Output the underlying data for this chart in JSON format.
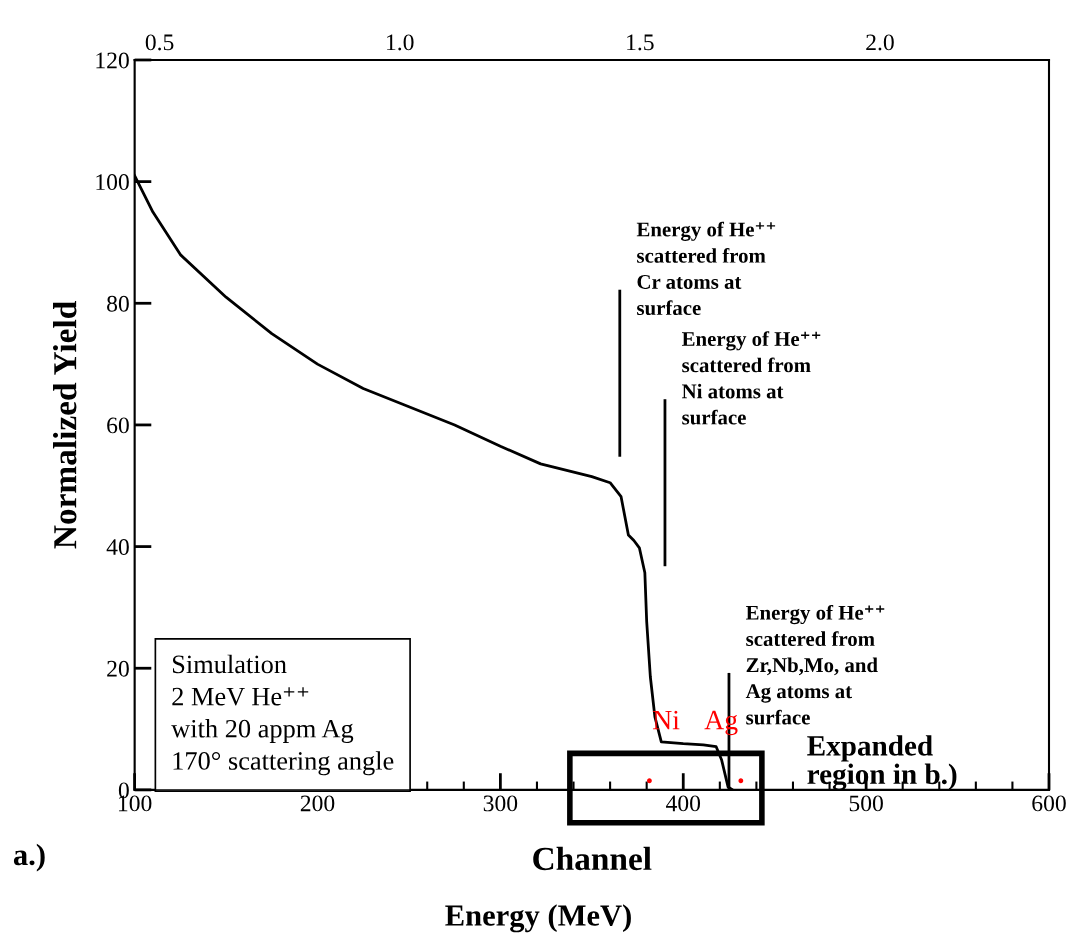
{
  "chart_data": {
    "type": "line",
    "xlabel": "Channel",
    "x2label": "Energy (MeV)",
    "ylabel": "Normalized Yield",
    "xlim": [
      100,
      600
    ],
    "xticks": [
      100,
      200,
      300,
      400,
      500,
      600
    ],
    "bands": [
      {
        "axis": "x",
        "from": 338,
        "to": 443,
        "color": "#ffffff"
      }
    ],
    "x2lim": [
      0.448,
      2.352
    ],
    "x2ticks": [
      0.5,
      {
        "value": 1,
        "label": "1.0"
      },
      1.5,
      {
        "value": 2,
        "label": "2.0"
      }
    ],
    "ylim": [
      0,
      120
    ],
    "yticks": [
      0,
      20,
      40,
      60,
      80,
      100,
      120
    ],
    "grid": false,
    "legend": false,
    "series": [
      {
        "color": "#000000",
        "x": [
          100,
          110,
          125,
          150,
          175,
          200,
          225,
          250,
          275,
          300,
          322,
          350,
          360,
          366,
          370,
          373,
          376,
          379,
          380,
          382,
          384.5,
          388,
          400,
          411,
          418,
          421,
          424.5,
          427
        ],
        "values": [
          101,
          95,
          88,
          81,
          75,
          70,
          66,
          63,
          60,
          56.5,
          53.6,
          51.5,
          50.5,
          48.2,
          41.9,
          41,
          39.8,
          35.7,
          27.7,
          18.6,
          12,
          7.9,
          7.6,
          7.4,
          7.1,
          4.9,
          0.5,
          0
        ]
      },
      {
        "color": "#000000",
        "x": [
          365.3,
          365.3
        ],
        "values": [
          55,
          82
        ]
      },
      {
        "color": "#000000",
        "x": [
          390,
          390
        ],
        "values": [
          37,
          64
        ]
      },
      {
        "color": "#000000",
        "x": [
          425,
          425
        ],
        "values": [
          0,
          19
        ]
      },
      {
        "type": "scatter",
        "name": "Ni",
        "color": "#ff0000",
        "x": [
          381.5
        ],
        "values": [
          1.5
        ]
      },
      {
        "type": "scatter",
        "name": "Ag",
        "color": "#ff0000",
        "x": [
          431.5
        ],
        "values": [
          1.5
        ]
      }
    ],
    "annotations": [
      {
        "text": "Energy of He⁺⁺\nscattered from\nCr atoms at\nsurface",
        "x": 365.3,
        "y": 82
      },
      {
        "text": "Energy of He⁺⁺\nscattered from\nNi atoms at\nsurface",
        "x": 390,
        "y": 64
      },
      {
        "text": "Energy of He⁺⁺\nscattered from\nZr,Nb,Mo, and\nAg atoms at\nsurface",
        "x": 425,
        "y": 19
      },
      "Expanded\nregion in b.)",
      "Simulation\n2 MeV He⁺⁺\nwith 20 appm Ag\n170° scattering angle",
      "a.)"
    ]
  }
}
